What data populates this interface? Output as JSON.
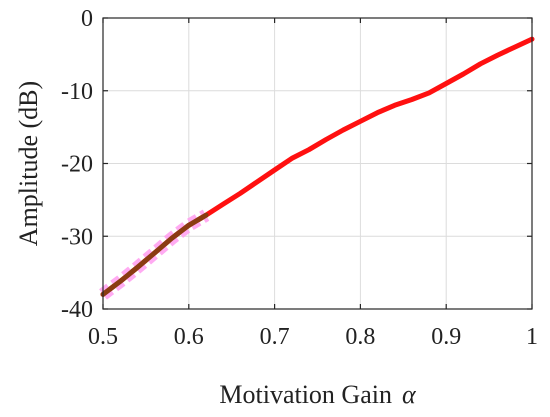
{
  "chart_data": {
    "type": "line",
    "title": "",
    "xlabel": "Motivation Gain",
    "xlabel_symbol": "α",
    "ylabel": "Amplitude (dB)",
    "xlim": [
      0.5,
      1.0
    ],
    "ylim": [
      -40,
      0
    ],
    "xticks": [
      0.5,
      0.6,
      0.7,
      0.8,
      0.9,
      1.0
    ],
    "xtick_labels": [
      "0.5",
      "0.6",
      "0.7",
      "0.8",
      "0.9",
      "1"
    ],
    "yticks": [
      0,
      -10,
      -20,
      -30,
      -40
    ],
    "ytick_labels": [
      "0",
      "-10",
      "-20",
      "-30",
      "-40"
    ],
    "grid": true,
    "legend": "none",
    "series": [
      {
        "color": "#ff1010",
        "x": [
          0.5,
          0.52,
          0.54,
          0.56,
          0.58,
          0.6,
          0.62,
          0.64,
          0.66,
          0.68,
          0.7,
          0.72,
          0.74,
          0.76,
          0.78,
          0.8,
          0.82,
          0.84,
          0.86,
          0.88,
          0.9,
          0.92,
          0.94,
          0.96,
          0.98,
          1.0
        ],
        "values": [
          -38.0,
          -36.2,
          -34.3,
          -32.3,
          -30.3,
          -28.5,
          -27.1,
          -25.6,
          -24.1,
          -22.5,
          -20.9,
          -19.3,
          -18.1,
          -16.7,
          -15.4,
          -14.2,
          -13.0,
          -12.0,
          -11.2,
          -10.3,
          -9.0,
          -7.7,
          -6.3,
          -5.1,
          -4.0,
          -2.9
        ]
      }
    ],
    "highlight_overlay": {
      "color": "#8a3b12",
      "glow_color": "#ff9cf0",
      "x": [
        0.5,
        0.52,
        0.54,
        0.56,
        0.58,
        0.6,
        0.62
      ],
      "values": [
        -38.0,
        -36.2,
        -34.3,
        -32.3,
        -30.3,
        -28.5,
        -27.1
      ]
    }
  }
}
